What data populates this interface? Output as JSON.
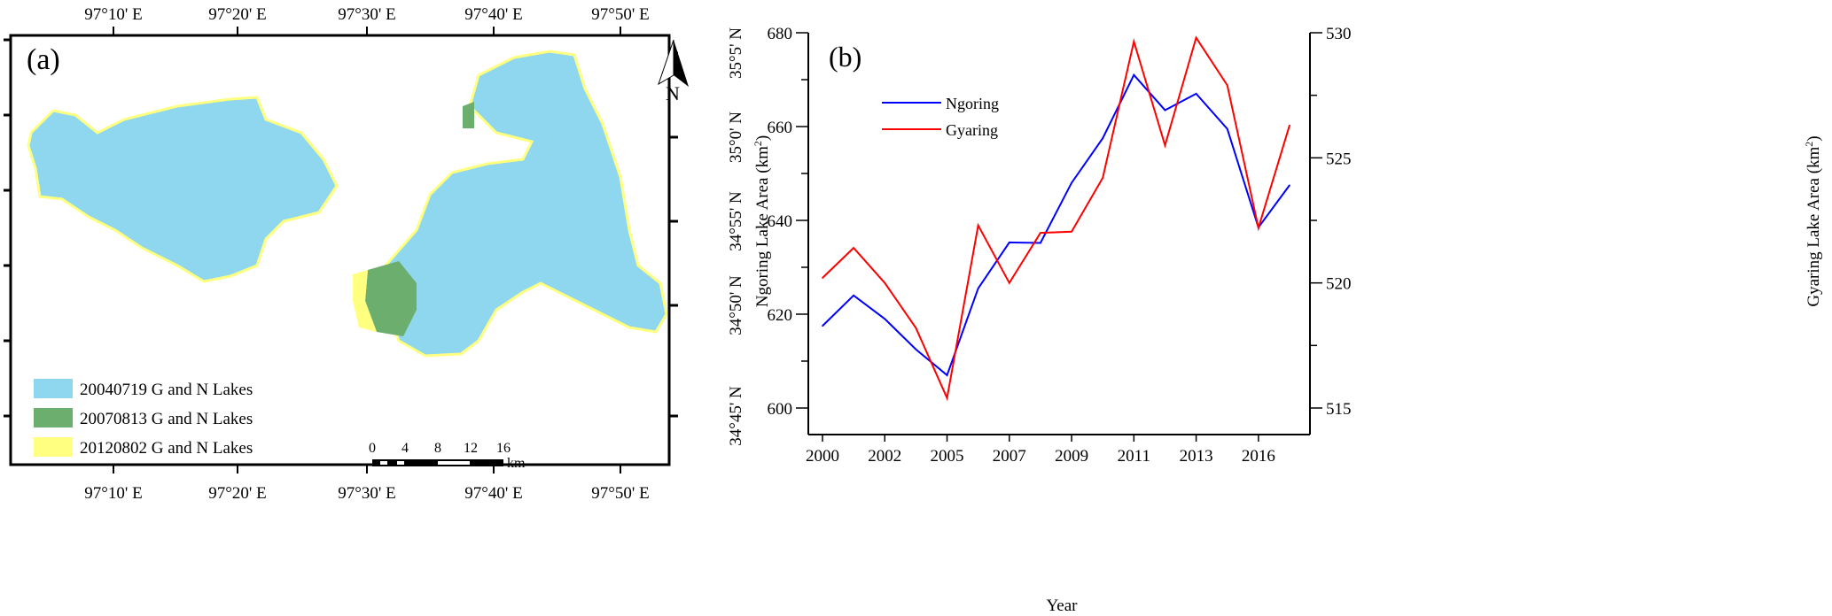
{
  "map": {
    "panel_label": "(a)",
    "lon_labels": [
      "97°10' E",
      "97°20' E",
      "97°30' E",
      "97°40' E",
      "97°50' E"
    ],
    "lat_labels": [
      "35°5' N",
      "35°0' N",
      "34°55' N",
      "34°50' N",
      "34°45' N"
    ],
    "north_label": "N",
    "legend": [
      {
        "label": "20040719 G and N Lakes",
        "color": "#8fd7ee"
      },
      {
        "label": "20070813 G and N Lakes",
        "color": "#6cae6e"
      },
      {
        "label": "20120802 G and N Lakes",
        "color": "#ffff80"
      }
    ],
    "scale_labels": [
      "0",
      "4",
      "8",
      "12",
      "16"
    ],
    "scale_unit": "km"
  },
  "chart_data": {
    "type": "line",
    "panel_label": "(b)",
    "xlabel": "Year",
    "ylabel_left": "Ngoring Lake Area (km",
    "ylabel_right": "Gyaring Lake Area (km",
    "ylabel_sup": "2",
    "x_tick_labels": [
      "2000",
      "2002",
      "2005",
      "2007",
      "2009",
      "2011",
      "2013",
      "2016"
    ],
    "ylim_left": [
      600,
      680
    ],
    "yticks_left": [
      "600",
      "620",
      "640",
      "660",
      "680"
    ],
    "ylim_right": [
      515,
      530
    ],
    "yticks_right": [
      "515",
      "520",
      "525",
      "530"
    ],
    "legend_position": "top-left",
    "series": [
      {
        "name": "Ngoring",
        "axis": "left",
        "color": "#0000ff",
        "values": [
          617.5,
          624,
          619,
          612.5,
          607,
          625.5,
          635.3,
          635.2,
          648,
          657.5,
          671,
          663.5,
          667,
          659.5,
          638.5,
          647.5
        ]
      },
      {
        "name": "Gyaring",
        "axis": "right",
        "color": "#ff0000",
        "values": [
          520.2,
          521.4,
          520.0,
          518.2,
          515.4,
          522.3,
          520.0,
          522.0,
          522.05,
          524.2,
          529.65,
          525.5,
          529.8,
          527.9,
          522.2,
          526.3
        ]
      }
    ]
  }
}
